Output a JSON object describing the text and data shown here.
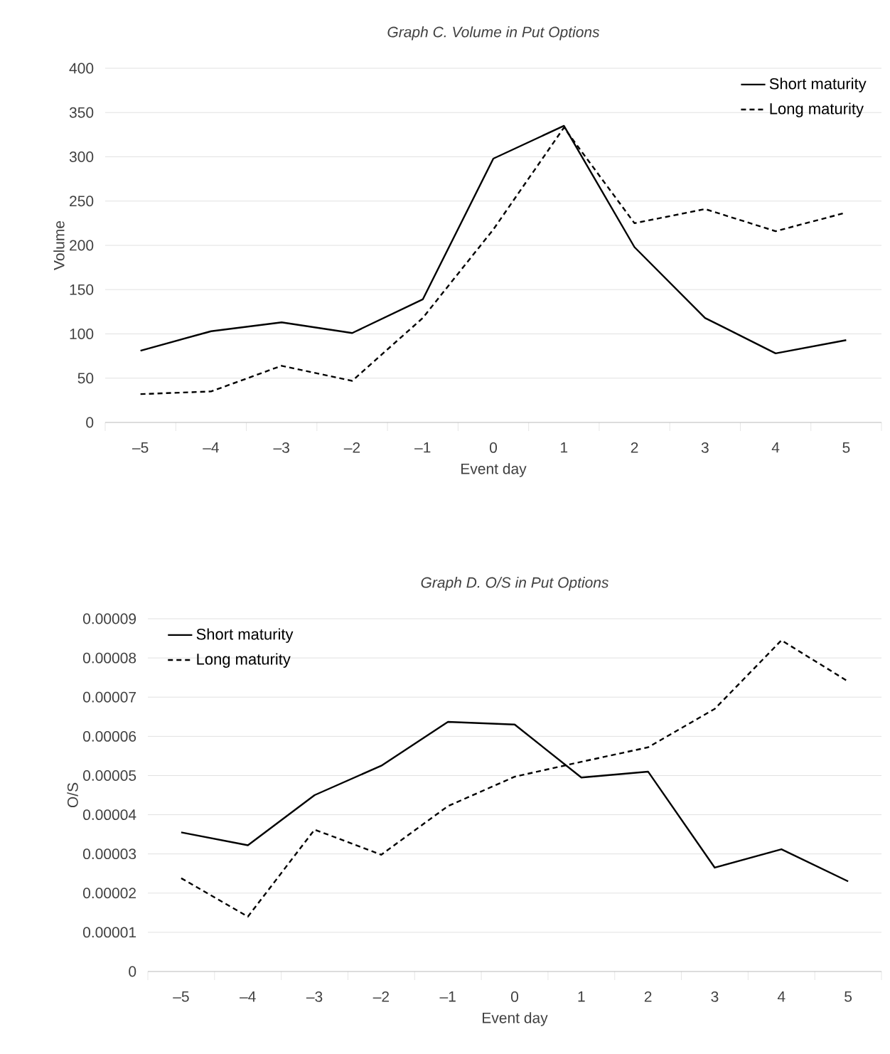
{
  "chart_data": [
    {
      "type": "line",
      "title": "Graph C. Volume in Put Options",
      "xlabel": "Event day",
      "ylabel": "Volume",
      "categories": [
        "–5",
        "–4",
        "–3",
        "–2",
        "–1",
        "0",
        "1",
        "2",
        "3",
        "4",
        "5"
      ],
      "ylim": [
        0,
        400
      ],
      "yticks": [
        0,
        50,
        100,
        150,
        200,
        250,
        300,
        350,
        400
      ],
      "grid": "y",
      "legend": "top right",
      "marker": "none",
      "series": [
        {
          "name": "Short maturity",
          "color": "#000000",
          "line_style": "solid",
          "values": [
            81,
            103,
            113,
            101,
            139,
            298,
            335,
            198,
            118,
            78,
            93
          ]
        },
        {
          "name": "Long maturity",
          "color": "#000000",
          "line_style": "dashed",
          "values": [
            32,
            35,
            64,
            47,
            118,
            218,
            333,
            225,
            241,
            216,
            237
          ]
        }
      ]
    },
    {
      "type": "line",
      "title": "Graph D. O/S in Put Options",
      "xlabel": "Event day",
      "ylabel": "O/S",
      "categories": [
        "–5",
        "–4",
        "–3",
        "–2",
        "–1",
        "0",
        "1",
        "2",
        "3",
        "4",
        "5"
      ],
      "ylim": [
        0,
        9e-05
      ],
      "yticks": [
        {
          "value": 0,
          "label": "0"
        },
        {
          "value": 1e-05,
          "label": "0.00001"
        },
        {
          "value": 2e-05,
          "label": "0.00002"
        },
        {
          "value": 3e-05,
          "label": "0.00003"
        },
        {
          "value": 4e-05,
          "label": "0.00004"
        },
        {
          "value": 5e-05,
          "label": "0.00005"
        },
        {
          "value": 6e-05,
          "label": "0.00006"
        },
        {
          "value": 7e-05,
          "label": "0.00007"
        },
        {
          "value": 8e-05,
          "label": "0.00008"
        },
        {
          "value": 9e-05,
          "label": "0.00009"
        }
      ],
      "grid": "y",
      "legend": "top left",
      "marker": "none",
      "series": [
        {
          "name": "Short maturity",
          "color": "#000000",
          "line_style": "solid",
          "values": [
            3.55e-05,
            3.22e-05,
            4.5e-05,
            5.25e-05,
            6.37e-05,
            6.3e-05,
            4.95e-05,
            5.1e-05,
            2.65e-05,
            3.12e-05,
            2.3e-05
          ]
        },
        {
          "name": "Long maturity",
          "color": "#000000",
          "line_style": "dashed",
          "values": [
            2.38e-05,
            1.4e-05,
            3.62e-05,
            2.98e-05,
            4.22e-05,
            4.97e-05,
            5.35e-05,
            5.72e-05,
            6.7e-05,
            8.45e-05,
            7.4e-05
          ]
        }
      ]
    }
  ]
}
